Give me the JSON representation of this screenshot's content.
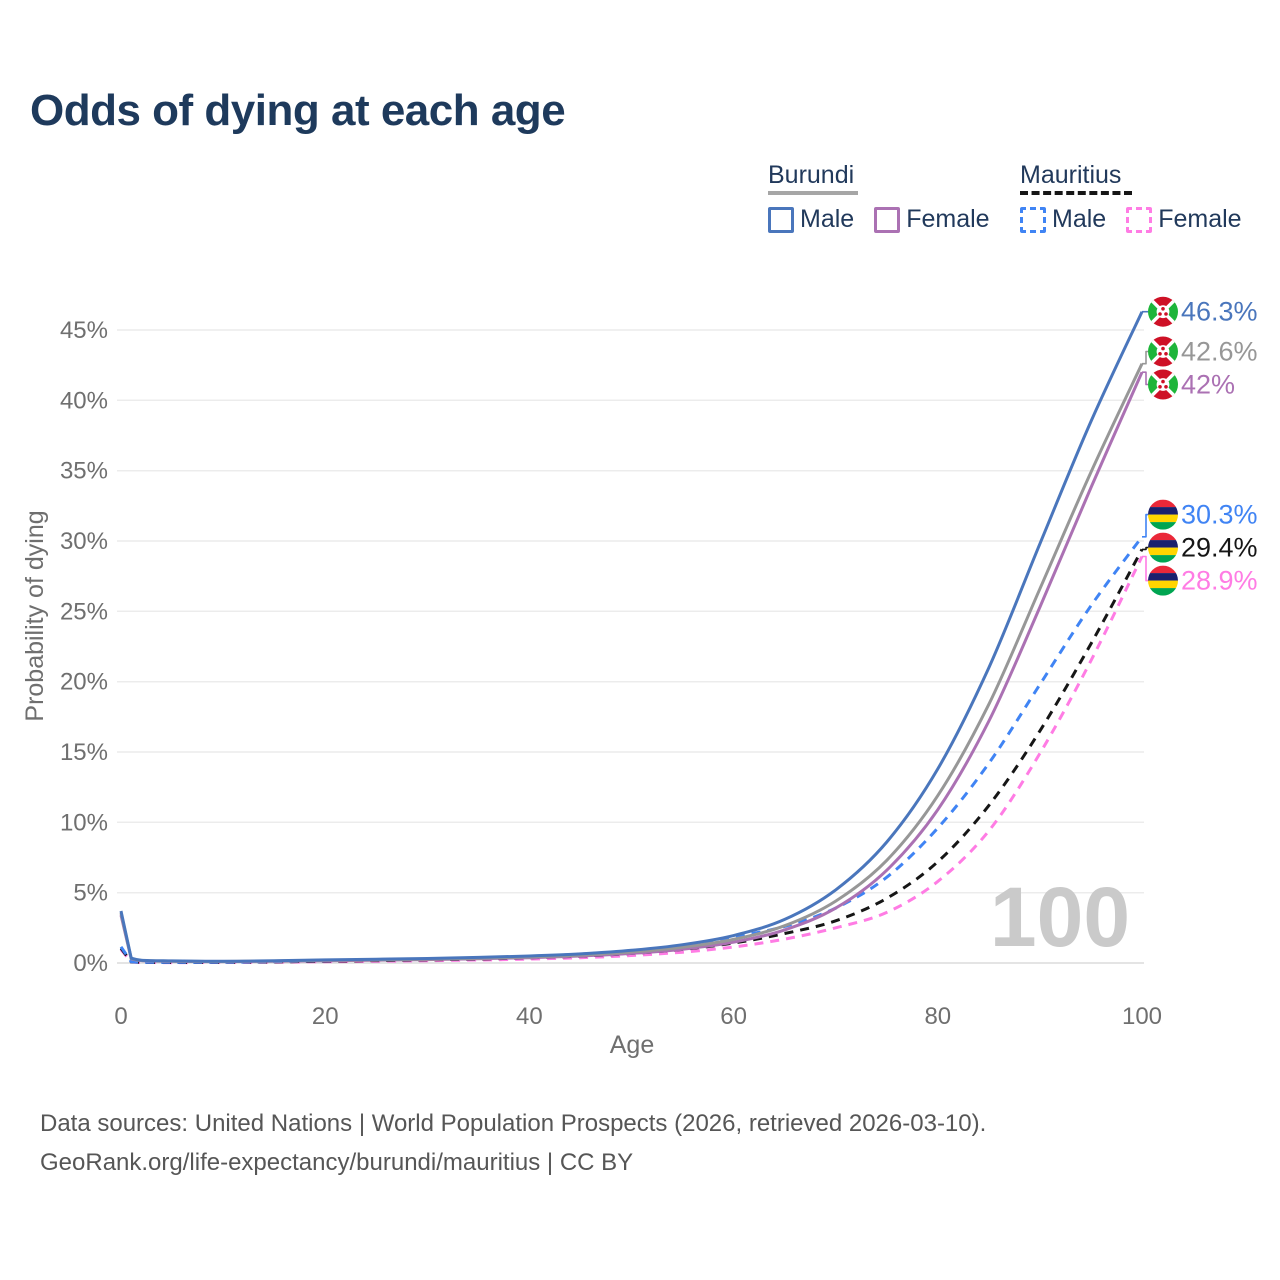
{
  "title": "Odds of dying at each age",
  "colors": {
    "title_text": "#1E3A5C",
    "legend_text": "#21395B",
    "axis_text": "#6F6F6F",
    "grid": "#ECECEC",
    "grid_zero": "#DCDCDC",
    "watermark": "#CACACA",
    "footer_text": "#565656"
  },
  "flags": {
    "burundi": {
      "red": "#CE1126",
      "green": "#1EB53A",
      "white": "#FFFFFF"
    },
    "mauritius": {
      "red": "#EA2839",
      "blue": "#1A206D",
      "yellow": "#FFD500",
      "green": "#00A551"
    }
  },
  "legend": {
    "groups": [
      {
        "label": "Burundi",
        "underline_style": "solid",
        "underline_color": "#A6A6A6",
        "items": [
          {
            "label": "Male",
            "series": "burundi-male",
            "color": "#4A76BC",
            "dashed": false
          },
          {
            "label": "Female",
            "series": "burundi-female",
            "color": "#AB71B3",
            "dashed": false
          }
        ]
      },
      {
        "label": "Mauritius",
        "underline_style": "dashed",
        "underline_color": "#161616",
        "items": [
          {
            "label": "Male",
            "series": "mauritius-male",
            "color": "#4084F4",
            "dashed": true
          },
          {
            "label": "Female",
            "series": "mauritius-female",
            "color": "#FF7CE4",
            "dashed": true
          }
        ]
      }
    ]
  },
  "chart_data": {
    "type": "line",
    "title": "Odds of dying at each age",
    "xlabel": "Age",
    "ylabel": "Probability of dying",
    "xlim": [
      0,
      100
    ],
    "ylim_pct": [
      0,
      47
    ],
    "xticks": [
      0,
      20,
      40,
      60,
      80,
      100
    ],
    "yticks_pct": [
      0,
      5,
      10,
      15,
      20,
      25,
      30,
      35,
      40,
      45
    ],
    "ytick_suffix": "%",
    "grid": "horizontal",
    "legend_position": "top-right",
    "age_counter_watermark": "100",
    "ages": [
      0,
      1,
      2,
      5,
      10,
      15,
      20,
      25,
      30,
      35,
      40,
      45,
      50,
      55,
      60,
      65,
      70,
      75,
      80,
      85,
      90,
      95,
      100
    ],
    "series": [
      {
        "id": "mauritius-female",
        "country": "Mauritius",
        "sex": "Female",
        "color": "#FF7CE4",
        "dashed": true,
        "flag": "mauritius",
        "end_label": "28.9%",
        "end_value_pct": 28.9,
        "values_pct": [
          0.95,
          0.07,
          0.04,
          0.03,
          0.04,
          0.06,
          0.09,
          0.12,
          0.16,
          0.21,
          0.28,
          0.38,
          0.53,
          0.77,
          1.14,
          1.7,
          2.5,
          3.6,
          5.8,
          9.4,
          14.9,
          21.5,
          28.9
        ]
      },
      {
        "id": "mauritius-total",
        "country": "Mauritius",
        "sex": "Both sexes",
        "color": "#161616",
        "dashed": true,
        "flag": "mauritius",
        "end_label": "29.4%",
        "end_value_pct": 29.4,
        "values_pct": [
          1.05,
          0.08,
          0.05,
          0.04,
          0.05,
          0.08,
          0.13,
          0.17,
          0.22,
          0.28,
          0.37,
          0.49,
          0.68,
          0.97,
          1.42,
          2.1,
          3.0,
          4.6,
          7.2,
          11.2,
          16.5,
          22.7,
          29.4
        ]
      },
      {
        "id": "mauritius-male",
        "country": "Mauritius",
        "sex": "Male",
        "color": "#4084F4",
        "dashed": true,
        "flag": "mauritius",
        "end_label": "30.3%",
        "end_value_pct": 30.3,
        "values_pct": [
          1.15,
          0.09,
          0.06,
          0.05,
          0.06,
          0.1,
          0.16,
          0.22,
          0.28,
          0.36,
          0.47,
          0.63,
          0.88,
          1.25,
          1.85,
          2.6,
          3.9,
          6.1,
          9.6,
          14.2,
          19.8,
          25.4,
          30.3
        ]
      },
      {
        "id": "burundi-female",
        "country": "Burundi",
        "sex": "Female",
        "color": "#AB71B3",
        "dashed": false,
        "flag": "burundi",
        "end_label": "42%",
        "end_value_pct": 42.0,
        "values_pct": [
          3.4,
          0.3,
          0.17,
          0.12,
          0.1,
          0.12,
          0.16,
          0.2,
          0.24,
          0.3,
          0.38,
          0.5,
          0.68,
          0.98,
          1.48,
          2.35,
          3.9,
          6.6,
          10.9,
          17.2,
          25.3,
          33.8,
          42.0
        ]
      },
      {
        "id": "burundi-total",
        "country": "Burundi",
        "sex": "Both sexes",
        "color": "#979797",
        "dashed": false,
        "flag": "burundi",
        "end_label": "42.6%",
        "end_value_pct": 42.6,
        "values_pct": [
          3.55,
          0.32,
          0.18,
          0.13,
          0.11,
          0.14,
          0.19,
          0.23,
          0.28,
          0.34,
          0.43,
          0.56,
          0.78,
          1.12,
          1.68,
          2.65,
          4.4,
          7.3,
          11.9,
          18.4,
          26.6,
          34.9,
          42.6
        ]
      },
      {
        "id": "burundi-male",
        "country": "Burundi",
        "sex": "Male",
        "color": "#4A76BC",
        "dashed": false,
        "flag": "burundi",
        "end_label": "46.3%",
        "end_value_pct": 46.3,
        "values_pct": [
          3.7,
          0.35,
          0.2,
          0.15,
          0.12,
          0.16,
          0.22,
          0.27,
          0.32,
          0.4,
          0.5,
          0.65,
          0.9,
          1.3,
          1.95,
          3.1,
          5.2,
          8.6,
          13.8,
          21.0,
          29.8,
          38.5,
          46.3
        ]
      }
    ]
  },
  "footer": {
    "line1": "Data sources: United Nations | World Population Prospects (2026, retrieved 2026-03-10).",
    "line2": "GeoRank.org/life-expectancy/burundi/mauritius | CC BY"
  }
}
